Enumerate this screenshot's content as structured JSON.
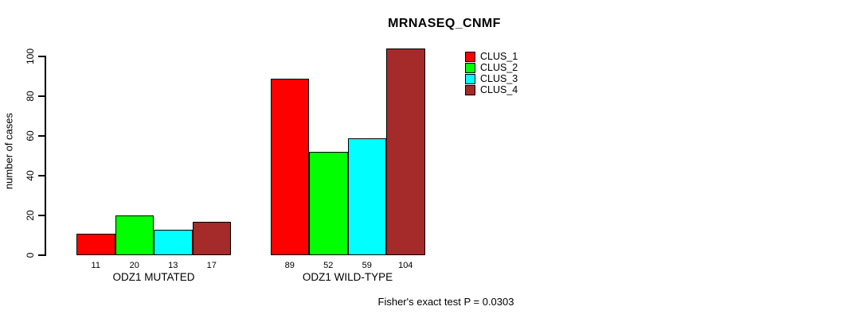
{
  "chart_data": {
    "type": "bar",
    "title": "MRNASEQ_CNMF",
    "ylabel": "number of cases",
    "xlabel": "",
    "ylim": [
      0,
      100
    ],
    "yticks": [
      0,
      20,
      40,
      60,
      80,
      100
    ],
    "categories": [
      "ODZ1 MUTATED",
      "ODZ1 WILD-TYPE"
    ],
    "series": [
      {
        "name": "CLUS_1",
        "color": "#FF0000",
        "values": [
          11,
          89
        ]
      },
      {
        "name": "CLUS_2",
        "color": "#00FF00",
        "values": [
          20,
          52
        ]
      },
      {
        "name": "CLUS_3",
        "color": "#00FFFF",
        "values": [
          13,
          59
        ]
      },
      {
        "name": "CLUS_4",
        "color": "#A52A2A",
        "values": [
          17,
          104
        ]
      }
    ],
    "bar_value_labels": [
      [
        11,
        20,
        13,
        17
      ],
      [
        89,
        52,
        59,
        104
      ]
    ],
    "legend_position": "top-right",
    "grid": false,
    "annotation": "Fisher's exact test P = 0.0303"
  }
}
